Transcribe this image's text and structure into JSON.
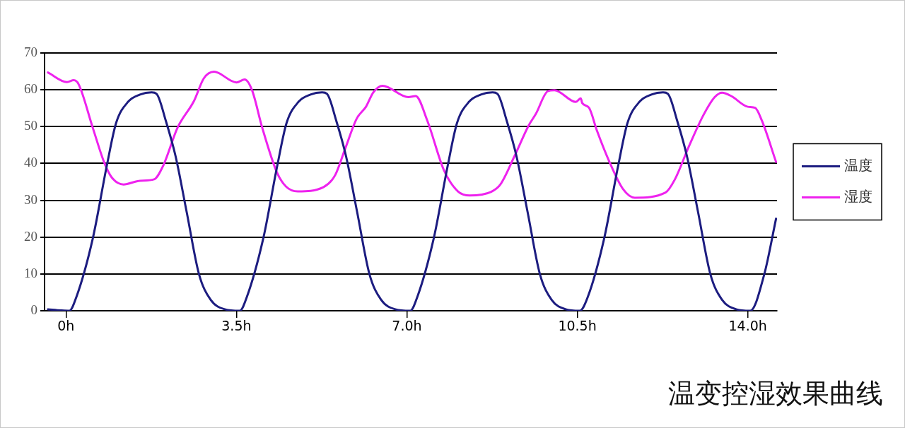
{
  "chart_data": {
    "type": "line",
    "title": "温变控湿效果曲线",
    "xlim": [
      -0.44,
      14.6
    ],
    "xticks": [
      {
        "value": 0,
        "label": "0h"
      },
      {
        "value": 3.5,
        "label": "3.5h"
      },
      {
        "value": 7,
        "label": "7.0h"
      },
      {
        "value": 10.5,
        "label": "10.5h"
      },
      {
        "value": 14,
        "label": "14.0h"
      }
    ],
    "ylim": [
      0,
      70
    ],
    "yticks": [
      0,
      10,
      20,
      30,
      40,
      50,
      60,
      70
    ],
    "grid": "y",
    "legend": "right",
    "marker": "none",
    "line_style": "solid",
    "series": [
      {
        "name": "温度",
        "color": "#1c1c80",
        "x": [
          -0.37,
          -0.1,
          0.07,
          0.21,
          0.55,
          0.84,
          1.03,
          1.28,
          1.52,
          1.76,
          1.86,
          2.05,
          2.25,
          2.48,
          2.73,
          2.97,
          3.26,
          3.57,
          3.71,
          4.05,
          4.34,
          4.53,
          4.78,
          5.02,
          5.26,
          5.36,
          5.55,
          5.75,
          5.98,
          6.23,
          6.47,
          6.76,
          7.07,
          7.21,
          7.55,
          7.84,
          8.03,
          8.28,
          8.52,
          8.76,
          8.86,
          9.05,
          9.25,
          9.48,
          9.73,
          9.97,
          10.26,
          10.55,
          10.71,
          11.05,
          11.34,
          11.53,
          11.78,
          12.02,
          12.26,
          12.36,
          12.55,
          12.75,
          12.98,
          13.23,
          13.47,
          13.76,
          14.05,
          14.34,
          14.58
        ],
        "values": [
          0.4,
          0.1,
          0,
          3.6,
          19.6,
          39.5,
          51,
          56.8,
          58.7,
          59.3,
          58.9,
          51.6,
          42,
          26.7,
          10,
          3,
          0.4,
          0,
          3.6,
          19.6,
          39.5,
          51,
          56.8,
          58.7,
          59.3,
          58.9,
          51.6,
          42,
          26.7,
          10,
          3,
          0.4,
          0,
          3.6,
          19.6,
          39.5,
          51,
          56.8,
          58.7,
          59.3,
          58.9,
          51.6,
          42,
          26.7,
          10,
          3,
          0.4,
          0,
          3.6,
          19.6,
          39.5,
          51,
          56.8,
          58.7,
          59.3,
          58.9,
          51.6,
          42,
          26.7,
          10,
          3,
          0.4,
          0,
          10,
          25
        ]
      },
      {
        "name": "湿度",
        "color": "#ee22ee",
        "x": [
          -0.37,
          0.02,
          0.16,
          0.26,
          0.55,
          0.79,
          0.94,
          1.18,
          1.52,
          1.81,
          2.0,
          2.29,
          2.63,
          2.83,
          3.04,
          3.5,
          3.67,
          3.82,
          4.03,
          4.33,
          4.52,
          4.76,
          5.29,
          5.53,
          5.73,
          5.97,
          6.16,
          6.31,
          6.5,
          7.03,
          7.18,
          7.42,
          7.76,
          8.05,
          8.29,
          8.73,
          8.92,
          9.21,
          9.5,
          9.65,
          9.89,
          10.03,
          10.47,
          10.57,
          10.6,
          10.74,
          10.9,
          11.15,
          11.44,
          11.68,
          12.31,
          12.5,
          12.79,
          13.08,
          13.32,
          13.47,
          13.66,
          14.0,
          14.15,
          14.29,
          14.58
        ],
        "values": [
          64.7,
          62.1,
          62.6,
          61.5,
          49.7,
          40.1,
          36.2,
          34.3,
          35.3,
          35.7,
          39.5,
          49.7,
          57,
          63.1,
          64.9,
          62,
          62.8,
          59.9,
          49.7,
          37.6,
          33.7,
          32.4,
          33.6,
          36.9,
          43.9,
          52.2,
          55.4,
          59.3,
          61.1,
          58,
          58.3,
          51.6,
          38.2,
          32.4,
          31.3,
          32.3,
          34.3,
          42,
          50.3,
          53.5,
          59.6,
          59.9,
          56.7,
          57.7,
          56.4,
          55.1,
          49,
          40.7,
          33,
          30.7,
          32.1,
          35.6,
          44.6,
          52.9,
          58,
          59.2,
          58.3,
          55.4,
          55.1,
          51.6,
          40.4
        ]
      }
    ]
  }
}
